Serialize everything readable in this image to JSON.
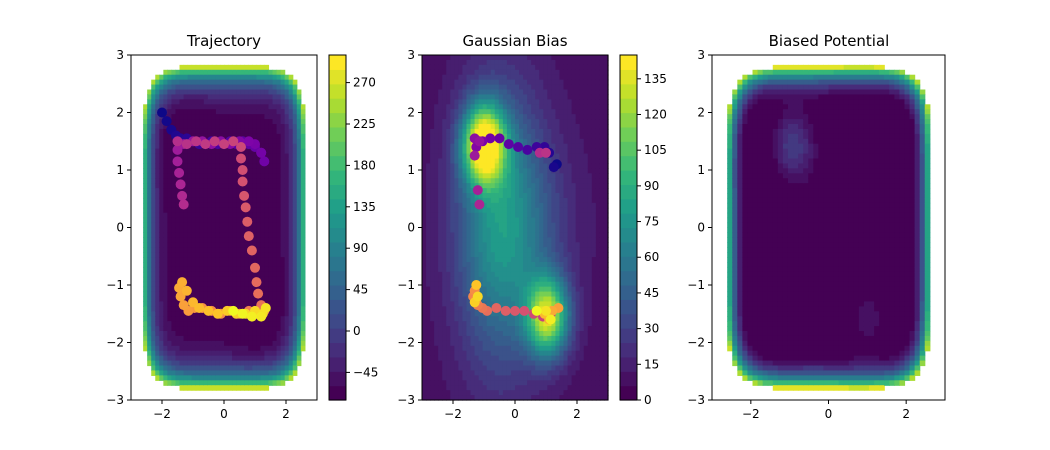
{
  "chart_data": [
    {
      "type": "scatter",
      "title": "Trajectory",
      "xlabel": "",
      "ylabel": "",
      "xlim": [
        -3,
        3
      ],
      "ylim": [
        -3,
        3
      ],
      "x_ticks": [
        "−2",
        "0",
        "2"
      ],
      "x_tick_values": [
        -2,
        0,
        2
      ],
      "y_ticks": [
        "−3",
        "−2",
        "−1",
        "0",
        "1",
        "2",
        "3"
      ],
      "y_tick_values": [
        -3,
        -2,
        -1,
        0,
        1,
        2,
        3
      ],
      "background": "filled contour of potential (viridis)",
      "colorbar": {
        "colormap": "viridis",
        "range": [
          -75,
          300
        ],
        "ticks": [
          "−45",
          "0",
          "45",
          "90",
          "135",
          "180",
          "225",
          "270"
        ],
        "tick_values": [
          -45,
          0,
          45,
          90,
          135,
          180,
          225,
          270
        ]
      },
      "points_colormap": "plasma (time order: dark blue → yellow)",
      "points": [
        [
          -2.0,
          2.0
        ],
        [
          -1.85,
          1.85
        ],
        [
          -1.7,
          1.7
        ],
        [
          -1.55,
          1.6
        ],
        [
          -1.4,
          1.55
        ],
        [
          -1.2,
          1.55
        ],
        [
          -1.0,
          1.5
        ],
        [
          -0.8,
          1.45
        ],
        [
          -0.6,
          1.45
        ],
        [
          -0.4,
          1.5
        ],
        [
          -0.2,
          1.45
        ],
        [
          0.0,
          1.45
        ],
        [
          0.2,
          1.5
        ],
        [
          0.4,
          1.45
        ],
        [
          0.6,
          1.5
        ],
        [
          0.8,
          1.45
        ],
        [
          1.0,
          1.4
        ],
        [
          1.2,
          1.3
        ],
        [
          1.3,
          1.15
        ],
        [
          1.2,
          1.3
        ],
        [
          1.0,
          1.45
        ],
        [
          0.8,
          1.5
        ],
        [
          0.5,
          1.5
        ],
        [
          0.2,
          1.45
        ],
        [
          -0.1,
          1.5
        ],
        [
          -0.4,
          1.45
        ],
        [
          -0.7,
          1.5
        ],
        [
          -1.0,
          1.5
        ],
        [
          -1.3,
          1.45
        ],
        [
          -1.5,
          1.35
        ],
        [
          -1.5,
          1.15
        ],
        [
          -1.45,
          0.95
        ],
        [
          -1.4,
          0.75
        ],
        [
          -1.35,
          0.55
        ],
        [
          -1.3,
          0.4
        ],
        [
          -1.5,
          1.5
        ],
        [
          -1.2,
          1.45
        ],
        [
          -0.9,
          1.5
        ],
        [
          -0.6,
          1.45
        ],
        [
          -0.3,
          1.5
        ],
        [
          0.0,
          1.45
        ],
        [
          0.3,
          1.5
        ],
        [
          0.55,
          1.4
        ],
        [
          0.55,
          1.2
        ],
        [
          0.6,
          1.0
        ],
        [
          0.6,
          0.8
        ],
        [
          0.65,
          0.55
        ],
        [
          0.7,
          0.35
        ],
        [
          0.75,
          0.1
        ],
        [
          0.8,
          -0.15
        ],
        [
          0.9,
          -0.4
        ],
        [
          1.0,
          -0.7
        ],
        [
          1.05,
          -0.95
        ],
        [
          1.1,
          -1.15
        ],
        [
          1.2,
          -1.35
        ],
        [
          1.3,
          -1.45
        ],
        [
          1.1,
          -1.5
        ],
        [
          0.8,
          -1.45
        ],
        [
          0.5,
          -1.5
        ],
        [
          0.2,
          -1.45
        ],
        [
          -0.1,
          -1.5
        ],
        [
          -0.4,
          -1.45
        ],
        [
          -0.7,
          -1.4
        ],
        [
          -0.95,
          -1.4
        ],
        [
          -1.15,
          -1.45
        ],
        [
          -1.3,
          -1.35
        ],
        [
          -1.4,
          -1.2
        ],
        [
          -1.45,
          -1.05
        ],
        [
          -1.35,
          -0.95
        ],
        [
          -1.2,
          -1.1
        ],
        [
          -1.0,
          -1.3
        ],
        [
          -0.8,
          -1.4
        ],
        [
          -0.5,
          -1.45
        ],
        [
          -0.2,
          -1.5
        ],
        [
          0.1,
          -1.45
        ],
        [
          0.4,
          -1.5
        ],
        [
          0.7,
          -1.5
        ],
        [
          1.0,
          -1.45
        ],
        [
          1.25,
          -1.5
        ],
        [
          1.35,
          -1.4
        ],
        [
          1.2,
          -1.55
        ],
        [
          0.9,
          -1.55
        ],
        [
          0.6,
          -1.5
        ],
        [
          0.3,
          -1.45
        ]
      ]
    },
    {
      "type": "scatter",
      "title": "Gaussian Bias",
      "xlabel": "",
      "ylabel": "",
      "xlim": [
        -3,
        3
      ],
      "ylim": [
        -3,
        3
      ],
      "x_ticks": [
        "−2",
        "0",
        "2"
      ],
      "x_tick_values": [
        -2,
        0,
        2
      ],
      "y_ticks": [
        "−3",
        "−2",
        "−1",
        "0",
        "1",
        "2",
        "3"
      ],
      "y_tick_values": [
        -3,
        -2,
        -1,
        0,
        1,
        2,
        3
      ],
      "background": "filled contour of accumulated gaussian bias (viridis)",
      "colorbar": {
        "colormap": "viridis",
        "range": [
          0,
          145
        ],
        "ticks": [
          "0",
          "15",
          "30",
          "45",
          "60",
          "75",
          "90",
          "105",
          "120",
          "135"
        ],
        "tick_values": [
          0,
          15,
          30,
          45,
          60,
          75,
          90,
          105,
          120,
          135
        ]
      },
      "points_colormap": "plasma (time order: dark blue → yellow)",
      "points": [
        [
          1.35,
          1.1
        ],
        [
          1.25,
          1.05
        ],
        [
          1.1,
          1.3
        ],
        [
          0.95,
          1.4
        ],
        [
          0.7,
          1.4
        ],
        [
          0.4,
          1.35
        ],
        [
          0.1,
          1.4
        ],
        [
          -0.2,
          1.45
        ],
        [
          -0.5,
          1.55
        ],
        [
          -0.8,
          1.55
        ],
        [
          -1.05,
          1.5
        ],
        [
          -1.25,
          1.4
        ],
        [
          -1.3,
          1.55
        ],
        [
          -1.15,
          1.5
        ],
        [
          -1.3,
          1.25
        ],
        [
          -1.2,
          0.65
        ],
        [
          -1.15,
          0.4
        ],
        [
          0.8,
          1.3
        ],
        [
          1.0,
          1.3
        ],
        [
          1.15,
          -1.5
        ],
        [
          0.9,
          -1.55
        ],
        [
          0.6,
          -1.5
        ],
        [
          0.3,
          -1.45
        ],
        [
          0.0,
          -1.45
        ],
        [
          -0.3,
          -1.45
        ],
        [
          -0.6,
          -1.4
        ],
        [
          -0.9,
          -1.45
        ],
        [
          -1.05,
          -1.4
        ],
        [
          -1.2,
          -1.35
        ],
        [
          -1.35,
          -1.2
        ],
        [
          -1.3,
          -1.1
        ],
        [
          -1.25,
          -1.25
        ],
        [
          1.4,
          -1.4
        ],
        [
          1.2,
          -1.45
        ],
        [
          1.1,
          -1.6
        ],
        [
          0.95,
          -1.5
        ],
        [
          -1.25,
          -1.0
        ],
        [
          -1.3,
          -1.3
        ],
        [
          -1.2,
          -1.2
        ],
        [
          1.0,
          -1.45
        ],
        [
          1.15,
          -1.6
        ],
        [
          0.7,
          -1.45
        ]
      ]
    },
    {
      "type": "heatmap",
      "title": "Biased Potential",
      "xlabel": "",
      "ylabel": "",
      "xlim": [
        -3,
        3
      ],
      "ylim": [
        -3,
        3
      ],
      "x_ticks": [
        "−2",
        "0",
        "2"
      ],
      "x_tick_values": [
        -2,
        0,
        2
      ],
      "y_ticks": [
        "−3",
        "−2",
        "−1",
        "0",
        "1",
        "2",
        "3"
      ],
      "y_tick_values": [
        -3,
        -2,
        -1,
        0,
        1,
        2,
        3
      ],
      "background": "filled contour of potential + bias (viridis)",
      "colormap": "viridis"
    }
  ]
}
